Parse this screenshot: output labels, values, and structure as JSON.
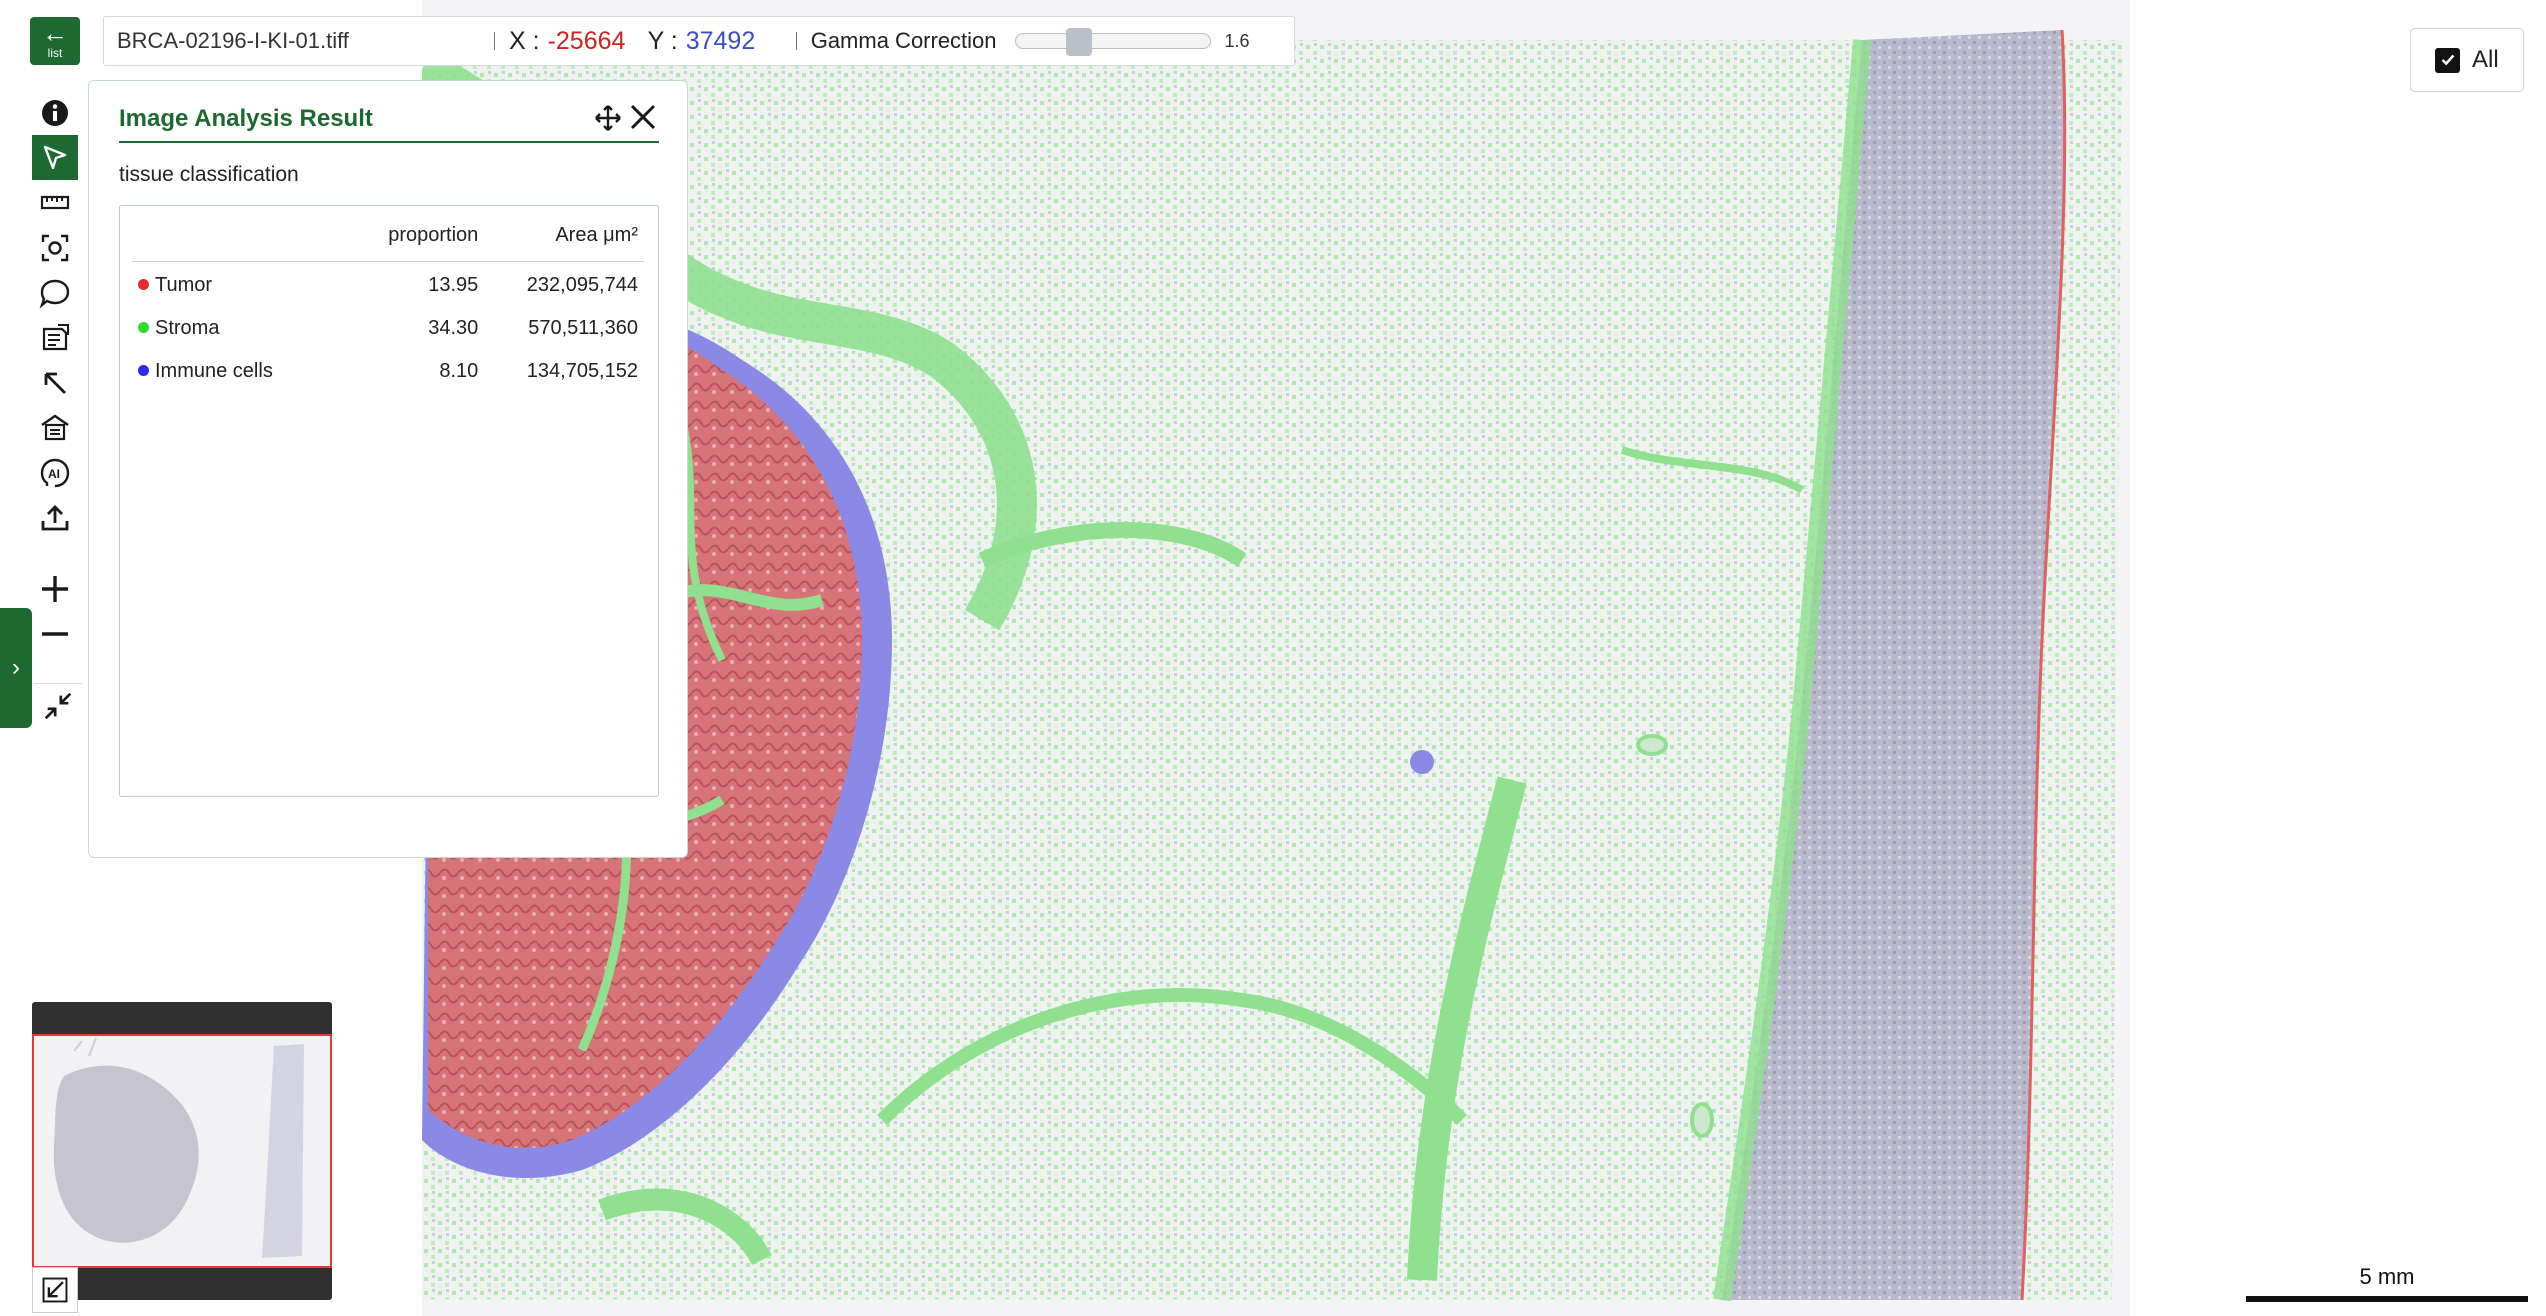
{
  "viewer": {
    "filename": "BRCA-02196-I-KI-01.tiff",
    "x_label": "X :",
    "x_value": "-25664",
    "y_label": "Y :",
    "y_value": "37492",
    "gamma_label": "Gamma Correction",
    "gamma_value": "1.6",
    "gamma_level": 0.3
  },
  "back_button": {
    "icon": "arrow-left-icon",
    "label": "list"
  },
  "toolbar": {
    "tools": [
      {
        "name": "info-icon"
      },
      {
        "name": "select-pointer-icon",
        "active": true
      },
      {
        "name": "ruler-icon"
      },
      {
        "name": "screenshot-icon"
      },
      {
        "name": "comment-icon"
      },
      {
        "name": "report-icon"
      },
      {
        "name": "arrow-annotation-icon"
      },
      {
        "name": "building-icon"
      },
      {
        "name": "ai-analysis-icon"
      },
      {
        "name": "upload-icon"
      }
    ],
    "zoom_in_icon": "plus-icon",
    "zoom_out_icon": "minus-icon",
    "fit_icon": "collapse-icon"
  },
  "drawer": {
    "icon": "chevron-right-icon"
  },
  "panel": {
    "title": "Image Analysis Result",
    "subtitle": "tissue classification",
    "columns": [
      "",
      "proportion",
      "Area μm²"
    ],
    "rows": [
      {
        "class": "Tumor",
        "color": "#e32b2b",
        "proportion": "13.95",
        "area": "232,095,744"
      },
      {
        "class": "Stroma",
        "color": "#2fdc2f",
        "proportion": "34.30",
        "area": "570,511,360"
      },
      {
        "class": "Immune cells",
        "color": "#2b2be8",
        "proportion": "8.10",
        "area": "134,705,152"
      }
    ]
  },
  "overlay_toggle": {
    "label": "All",
    "checked": true
  },
  "scale_bar": {
    "label": "5 mm"
  },
  "colors": {
    "brand": "#1c6a31",
    "tumor": "#d96a70",
    "stroma": "#8fe08f",
    "immune": "#7f7fe0",
    "tissue_gray": "#b6b4c8"
  }
}
